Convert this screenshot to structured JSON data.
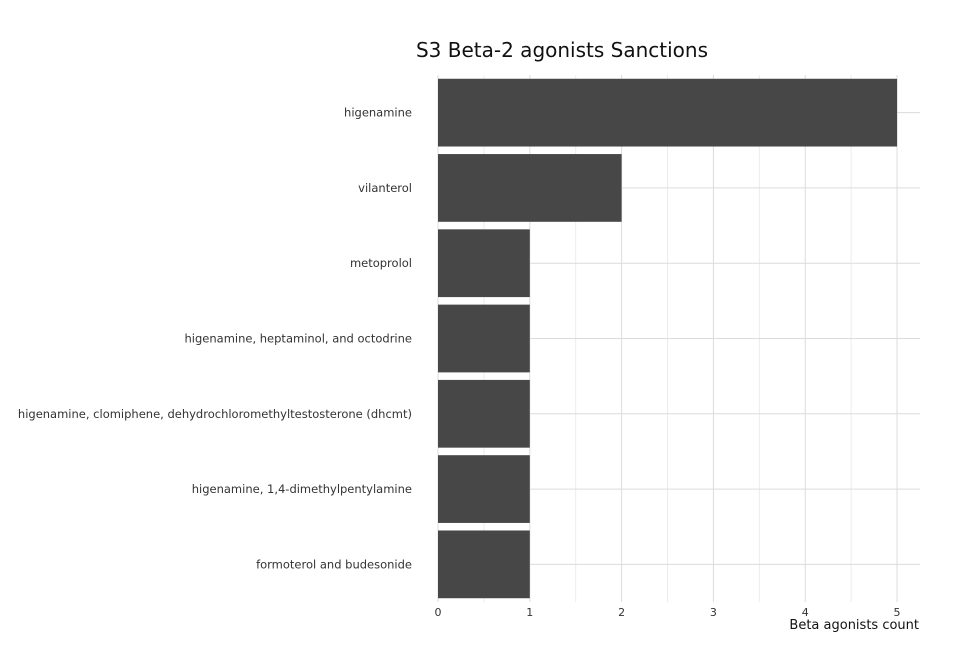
{
  "chart_data": {
    "type": "bar",
    "orientation": "horizontal",
    "title": "S3 Beta-2 agonists Sanctions",
    "xlabel": "Beta agonists count",
    "ylabel": "",
    "categories": [
      "higenamine",
      "vilanterol",
      "metoprolol",
      "higenamine, heptaminol, and octodrine",
      "higenamine, clomiphene, dehydrochloromethyltestosterone (dhcmt)",
      "higenamine, 1,4-dimethylpentylamine",
      "formoterol and budesonide"
    ],
    "values": [
      5,
      2,
      1,
      1,
      1,
      1,
      1
    ],
    "xlim": [
      0,
      5.25
    ],
    "xticks": [
      "0",
      "1",
      "2",
      "3",
      "4",
      "5"
    ],
    "grid": true,
    "bar_color": "#474747"
  }
}
